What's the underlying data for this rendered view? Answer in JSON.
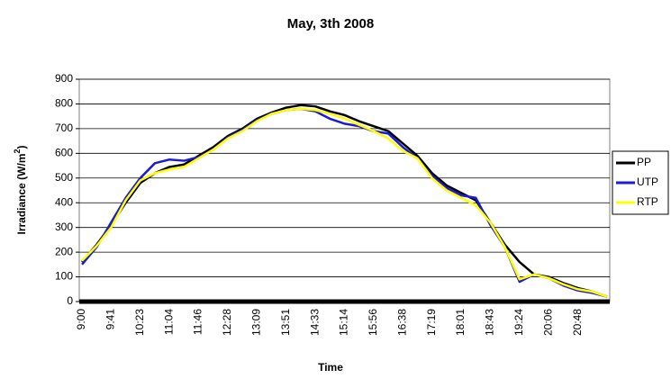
{
  "chart_data": {
    "type": "line",
    "title": "May, 3th 2008",
    "x_label": "Time",
    "y_label": [
      "Irradiance (W/m",
      "2",
      ")"
    ],
    "categories": [
      "9:00",
      null,
      "9:41",
      null,
      "10:23",
      null,
      "11:04",
      null,
      "11:46",
      null,
      "12:28",
      null,
      "13:09",
      null,
      "13:51",
      null,
      "14:33",
      null,
      "15:14",
      null,
      "15:56",
      null,
      "16:38",
      null,
      "17:19",
      null,
      "18:01",
      null,
      "18:43",
      null,
      "19:24",
      null,
      "20:06",
      null,
      "20:48",
      null,
      null
    ],
    "series": [
      {
        "name": "PP",
        "color": "#000000",
        "values": [
          160,
          230,
          310,
          400,
          480,
          520,
          545,
          555,
          590,
          625,
          670,
          700,
          740,
          765,
          785,
          795,
          790,
          770,
          755,
          730,
          710,
          690,
          640,
          590,
          520,
          470,
          440,
          410,
          320,
          230,
          160,
          110,
          100,
          75,
          55,
          40,
          20
        ]
      },
      {
        "name": "UTP",
        "color": "#1a1adc",
        "values": [
          150,
          220,
          320,
          420,
          500,
          560,
          575,
          570,
          585,
          615,
          665,
          695,
          735,
          760,
          775,
          780,
          770,
          740,
          720,
          710,
          690,
          680,
          625,
          580,
          510,
          460,
          430,
          420,
          310,
          220,
          80,
          110,
          95,
          65,
          45,
          35,
          20
        ]
      },
      {
        "name": "RTP",
        "color": "#ffff00",
        "values": [
          165,
          225,
          300,
          410,
          490,
          520,
          535,
          545,
          580,
          615,
          660,
          690,
          730,
          760,
          775,
          780,
          775,
          760,
          740,
          715,
          690,
          660,
          610,
          580,
          500,
          450,
          420,
          390,
          320,
          220,
          90,
          110,
          95,
          70,
          50,
          40,
          20
        ]
      }
    ],
    "ylim": [
      0,
      900
    ],
    "yticks": [
      0,
      100,
      200,
      300,
      400,
      500,
      600,
      700,
      800,
      900
    ],
    "grid": true,
    "legend": "right"
  }
}
